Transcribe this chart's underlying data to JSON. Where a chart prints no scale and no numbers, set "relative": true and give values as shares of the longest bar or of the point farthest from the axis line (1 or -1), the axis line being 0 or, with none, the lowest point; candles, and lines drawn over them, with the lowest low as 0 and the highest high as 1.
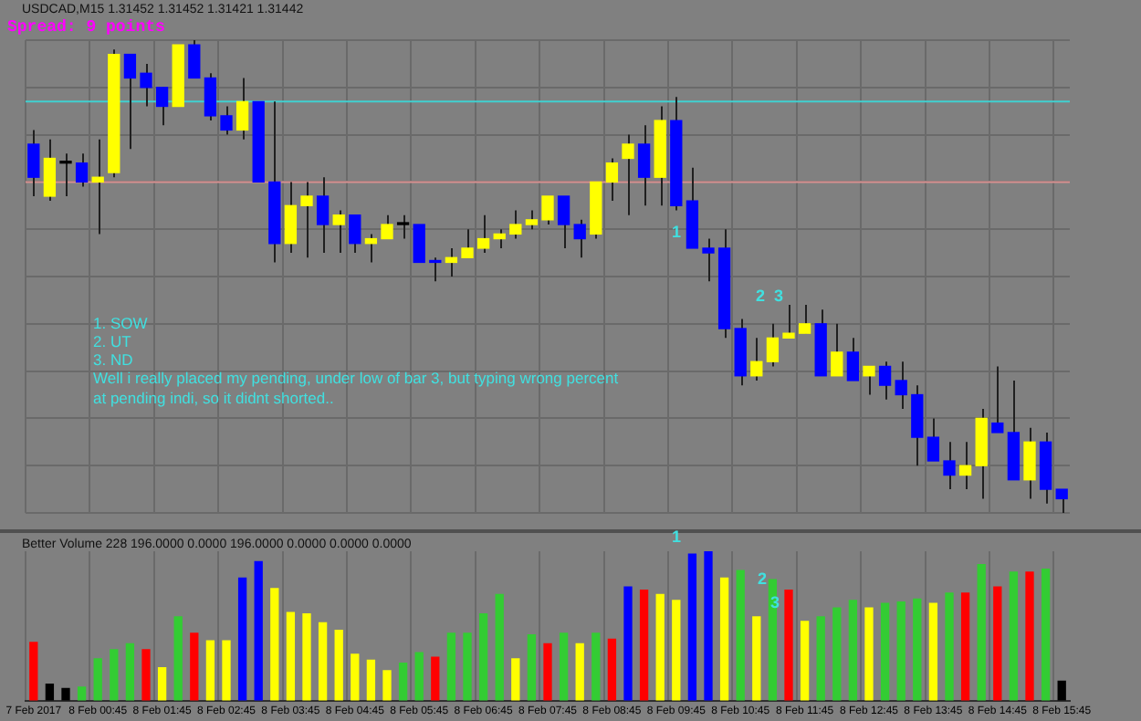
{
  "chart_data": [
    {
      "type": "candlestick",
      "title": "USDCAD,M15 1.31452 1.31452 1.31421 1.31442",
      "subtitle": "Spread: 9 points",
      "annotations": [
        "1. SOW",
        "2. UT",
        "3. ND",
        "Well i really placed my pending, under low of bar 3, but typing wrong percent at pending indi, so it didnt shorted..",
        "1",
        "2",
        "3"
      ],
      "relative": true,
      "tick_labels": false,
      "grid": true,
      "categories": [
        null,
        null,
        null,
        null,
        null,
        null,
        null,
        null,
        null,
        null,
        null,
        null,
        null,
        null,
        null,
        null,
        null,
        null,
        null,
        null,
        null,
        null,
        null,
        null,
        null,
        null,
        null,
        null,
        null,
        null,
        null,
        null,
        null,
        null,
        null,
        null,
        null,
        null,
        null,
        null,
        null,
        null,
        null,
        null,
        null,
        null,
        null,
        null,
        null,
        null,
        null,
        null,
        null,
        null,
        null,
        null,
        null,
        null,
        null,
        null,
        null,
        null,
        null,
        null,
        null
      ],
      "ohlc": [
        [
          0.78,
          0.81,
          0.67,
          0.71
        ],
        [
          0.67,
          0.79,
          0.66,
          0.75
        ],
        [
          0.74,
          0.76,
          0.67,
          0.74
        ],
        [
          0.74,
          0.76,
          0.69,
          0.7
        ],
        [
          0.7,
          0.79,
          0.59,
          0.71
        ],
        [
          0.72,
          0.98,
          0.71,
          0.97
        ],
        [
          0.97,
          0.97,
          0.77,
          0.92
        ],
        [
          0.93,
          0.95,
          0.86,
          0.9
        ],
        [
          0.9,
          0.9,
          0.82,
          0.86
        ],
        [
          0.86,
          0.99,
          0.86,
          0.99
        ],
        [
          0.99,
          1,
          0.92,
          0.92
        ],
        [
          0.92,
          0.93,
          0.83,
          0.84
        ],
        [
          0.84,
          0.86,
          0.8,
          0.81
        ],
        [
          0.81,
          0.92,
          0.79,
          0.87
        ],
        [
          0.87,
          0.87,
          0.7,
          0.7
        ],
        [
          0.7,
          0.87,
          0.53,
          0.57
        ],
        [
          0.57,
          0.7,
          0.55,
          0.65
        ],
        [
          0.65,
          0.7,
          0.54,
          0.67
        ],
        [
          0.67,
          0.71,
          0.55,
          0.61
        ],
        [
          0.61,
          0.64,
          0.55,
          0.63
        ],
        [
          0.63,
          0.63,
          0.55,
          0.57
        ],
        [
          0.57,
          0.59,
          0.53,
          0.58
        ],
        [
          0.58,
          0.63,
          0.58,
          0.61
        ],
        [
          0.61,
          0.63,
          0.58,
          0.61
        ],
        [
          0.61,
          0.61,
          0.53,
          0.53
        ],
        [
          0.53,
          0.54,
          0.49,
          0.53
        ],
        [
          0.53,
          0.56,
          0.5,
          0.54
        ],
        [
          0.54,
          0.6,
          0.54,
          0.56
        ],
        [
          0.56,
          0.63,
          0.55,
          0.58
        ],
        [
          0.58,
          0.6,
          0.56,
          0.59
        ],
        [
          0.59,
          0.64,
          0.58,
          0.61
        ],
        [
          0.61,
          0.64,
          0.6,
          0.62
        ],
        [
          0.62,
          0.67,
          0.61,
          0.67
        ],
        [
          0.67,
          0.67,
          0.56,
          0.61
        ],
        [
          0.61,
          0.62,
          0.54,
          0.58
        ],
        [
          0.59,
          0.7,
          0.58,
          0.7
        ],
        [
          0.7,
          0.75,
          0.66,
          0.74
        ],
        [
          0.75,
          0.8,
          0.63,
          0.78
        ],
        [
          0.78,
          0.82,
          0.65,
          0.71
        ],
        [
          0.71,
          0.86,
          0.65,
          0.83
        ],
        [
          0.83,
          0.88,
          0.64,
          0.65
        ],
        [
          0.66,
          0.73,
          0.56,
          0.56
        ],
        [
          0.56,
          0.58,
          0.49,
          0.55
        ],
        [
          0.56,
          0.6,
          0.37,
          0.39
        ],
        [
          0.39,
          0.41,
          0.27,
          0.29
        ],
        [
          0.29,
          0.37,
          0.28,
          0.32
        ],
        [
          0.32,
          0.4,
          0.31,
          0.37
        ],
        [
          0.37,
          0.44,
          0.37,
          0.38
        ],
        [
          0.38,
          0.44,
          0.38,
          0.4
        ],
        [
          0.4,
          0.43,
          0.29,
          0.29
        ],
        [
          0.29,
          0.4,
          0.29,
          0.34
        ],
        [
          0.34,
          0.37,
          0.28,
          0.28
        ],
        [
          0.29,
          0.31,
          0.25,
          0.31
        ],
        [
          0.31,
          0.32,
          0.24,
          0.27
        ],
        [
          0.28,
          0.32,
          0.22,
          0.25
        ],
        [
          0.25,
          0.27,
          0.1,
          0.16
        ],
        [
          0.16,
          0.2,
          0.11,
          0.11
        ],
        [
          0.11,
          0.15,
          0.05,
          0.08
        ],
        [
          0.08,
          0.15,
          0.05,
          0.1
        ],
        [
          0.1,
          0.22,
          0.03,
          0.2
        ],
        [
          0.19,
          0.31,
          0.17,
          0.17
        ],
        [
          0.17,
          0.28,
          0.07,
          0.07
        ],
        [
          0.07,
          0.18,
          0.03,
          0.15
        ],
        [
          0.15,
          0.17,
          0.02,
          0.05
        ],
        [
          0.05,
          0.05,
          0,
          0.03
        ]
      ],
      "colors": [
        "#0000ff",
        "#ffff00",
        "#000000",
        "#0000ff",
        "#ffff00",
        "#ffff00",
        "#0000ff",
        "#0000ff",
        "#0000ff",
        "#ffff00",
        "#0000ff",
        "#0000ff",
        "#0000ff",
        "#ffff00",
        "#0000ff",
        "#0000ff",
        "#ffff00",
        "#ffff00",
        "#0000ff",
        "#ffff00",
        "#0000ff",
        "#ffff00",
        "#ffff00",
        "#000000",
        "#0000ff",
        "#0000ff",
        "#ffff00",
        "#ffff00",
        "#ffff00",
        "#ffff00",
        "#ffff00",
        "#ffff00",
        "#ffff00",
        "#0000ff",
        "#0000ff",
        "#ffff00",
        "#ffff00",
        "#ffff00",
        "#0000ff",
        "#ffff00",
        "#0000ff",
        "#0000ff",
        "#0000ff",
        "#0000ff",
        "#0000ff",
        "#ffff00",
        "#ffff00",
        "#ffff00",
        "#ffff00",
        "#0000ff",
        "#ffff00",
        "#0000ff",
        "#ffff00",
        "#0000ff",
        "#0000ff",
        "#0000ff",
        "#0000ff",
        "#0000ff",
        "#ffff00",
        "#ffff00",
        "#0000ff",
        "#0000ff",
        "#ffff00",
        "#0000ff",
        "#0000ff"
      ],
      "ref_lines": [
        {
          "axis": "y",
          "value": 0.87,
          "color": "#40d0d0"
        },
        {
          "axis": "y",
          "value": 0.7,
          "color": "#d89090"
        }
      ]
    },
    {
      "type": "bar",
      "title": "Better Volume 228 196.0000 0.0000 196.0000 0.0000 0.0000 0.0000",
      "annotations": [
        "1",
        "2",
        "3"
      ],
      "relative": true,
      "grid": "x",
      "categories": [
        "7 Feb 2017",
        null,
        null,
        null,
        "8 Feb 00:45",
        null,
        null,
        null,
        "8 Feb 01:45",
        null,
        null,
        null,
        "8 Feb 02:45",
        null,
        null,
        null,
        "8 Feb 03:45",
        null,
        null,
        null,
        "8 Feb 04:45",
        null,
        null,
        null,
        "8 Feb 05:45",
        null,
        null,
        null,
        "8 Feb 06:45",
        null,
        null,
        null,
        "8 Feb 07:45",
        null,
        null,
        null,
        "8 Feb 08:45",
        null,
        null,
        null,
        "8 Feb 09:45",
        null,
        null,
        null,
        "8 Feb 10:45",
        null,
        null,
        null,
        "8 Feb 11:45",
        null,
        null,
        null,
        "8 Feb 12:45",
        null,
        null,
        null,
        "8 Feb 13:45",
        null,
        null,
        null,
        "8 Feb 14:45",
        null,
        null,
        null,
        "8 Feb 15:45"
      ],
      "values": [
        0.39,
        0.11,
        0.08,
        0.09,
        0.28,
        0.34,
        0.38,
        0.34,
        0.22,
        0.56,
        0.45,
        0.4,
        0.4,
        0.82,
        0.93,
        0.75,
        0.59,
        0.58,
        0.52,
        0.47,
        0.31,
        0.27,
        0.2,
        0.25,
        0.32,
        0.29,
        0.45,
        0.45,
        0.58,
        0.71,
        0.28,
        0.44,
        0.38,
        0.45,
        0.38,
        0.45,
        0.41,
        0.76,
        0.74,
        0.71,
        0.67,
        0.98,
        1,
        0.82,
        0.87,
        0.56,
        0.81,
        0.74,
        0.53,
        0.56,
        0.62,
        0.67,
        0.62,
        0.65,
        0.66,
        0.68,
        0.65,
        0.72,
        0.72,
        0.91,
        0.76,
        0.86,
        0.86,
        0.88,
        0.13
      ],
      "colors": [
        "#ff0000",
        "#000000",
        "#000000",
        "#33cc33",
        "#33cc33",
        "#33cc33",
        "#33cc33",
        "#ff0000",
        "#ffff00",
        "#33cc33",
        "#ff0000",
        "#ffff00",
        "#ffff00",
        "#0000ff",
        "#0000ff",
        "#ffff00",
        "#ffff00",
        "#ffff00",
        "#ffff00",
        "#ffff00",
        "#ffff00",
        "#ffff00",
        "#ffff00",
        "#33cc33",
        "#33cc33",
        "#ff0000",
        "#33cc33",
        "#33cc33",
        "#33cc33",
        "#33cc33",
        "#ffff00",
        "#33cc33",
        "#ff0000",
        "#33cc33",
        "#ffff00",
        "#33cc33",
        "#ff0000",
        "#0000ff",
        "#ff0000",
        "#ffff00",
        "#ffff00",
        "#0000ff",
        "#0000ff",
        "#ffff00",
        "#33cc33",
        "#ffff00",
        "#33cc33",
        "#ff0000",
        "#ffff00",
        "#33cc33",
        "#33cc33",
        "#33cc33",
        "#ffff00",
        "#33cc33",
        "#33cc33",
        "#33cc33",
        "#ffff00",
        "#33cc33",
        "#ff0000",
        "#33cc33",
        "#ff0000",
        "#33cc33",
        "#ff0000",
        "#33cc33",
        "#000000"
      ]
    }
  ]
}
